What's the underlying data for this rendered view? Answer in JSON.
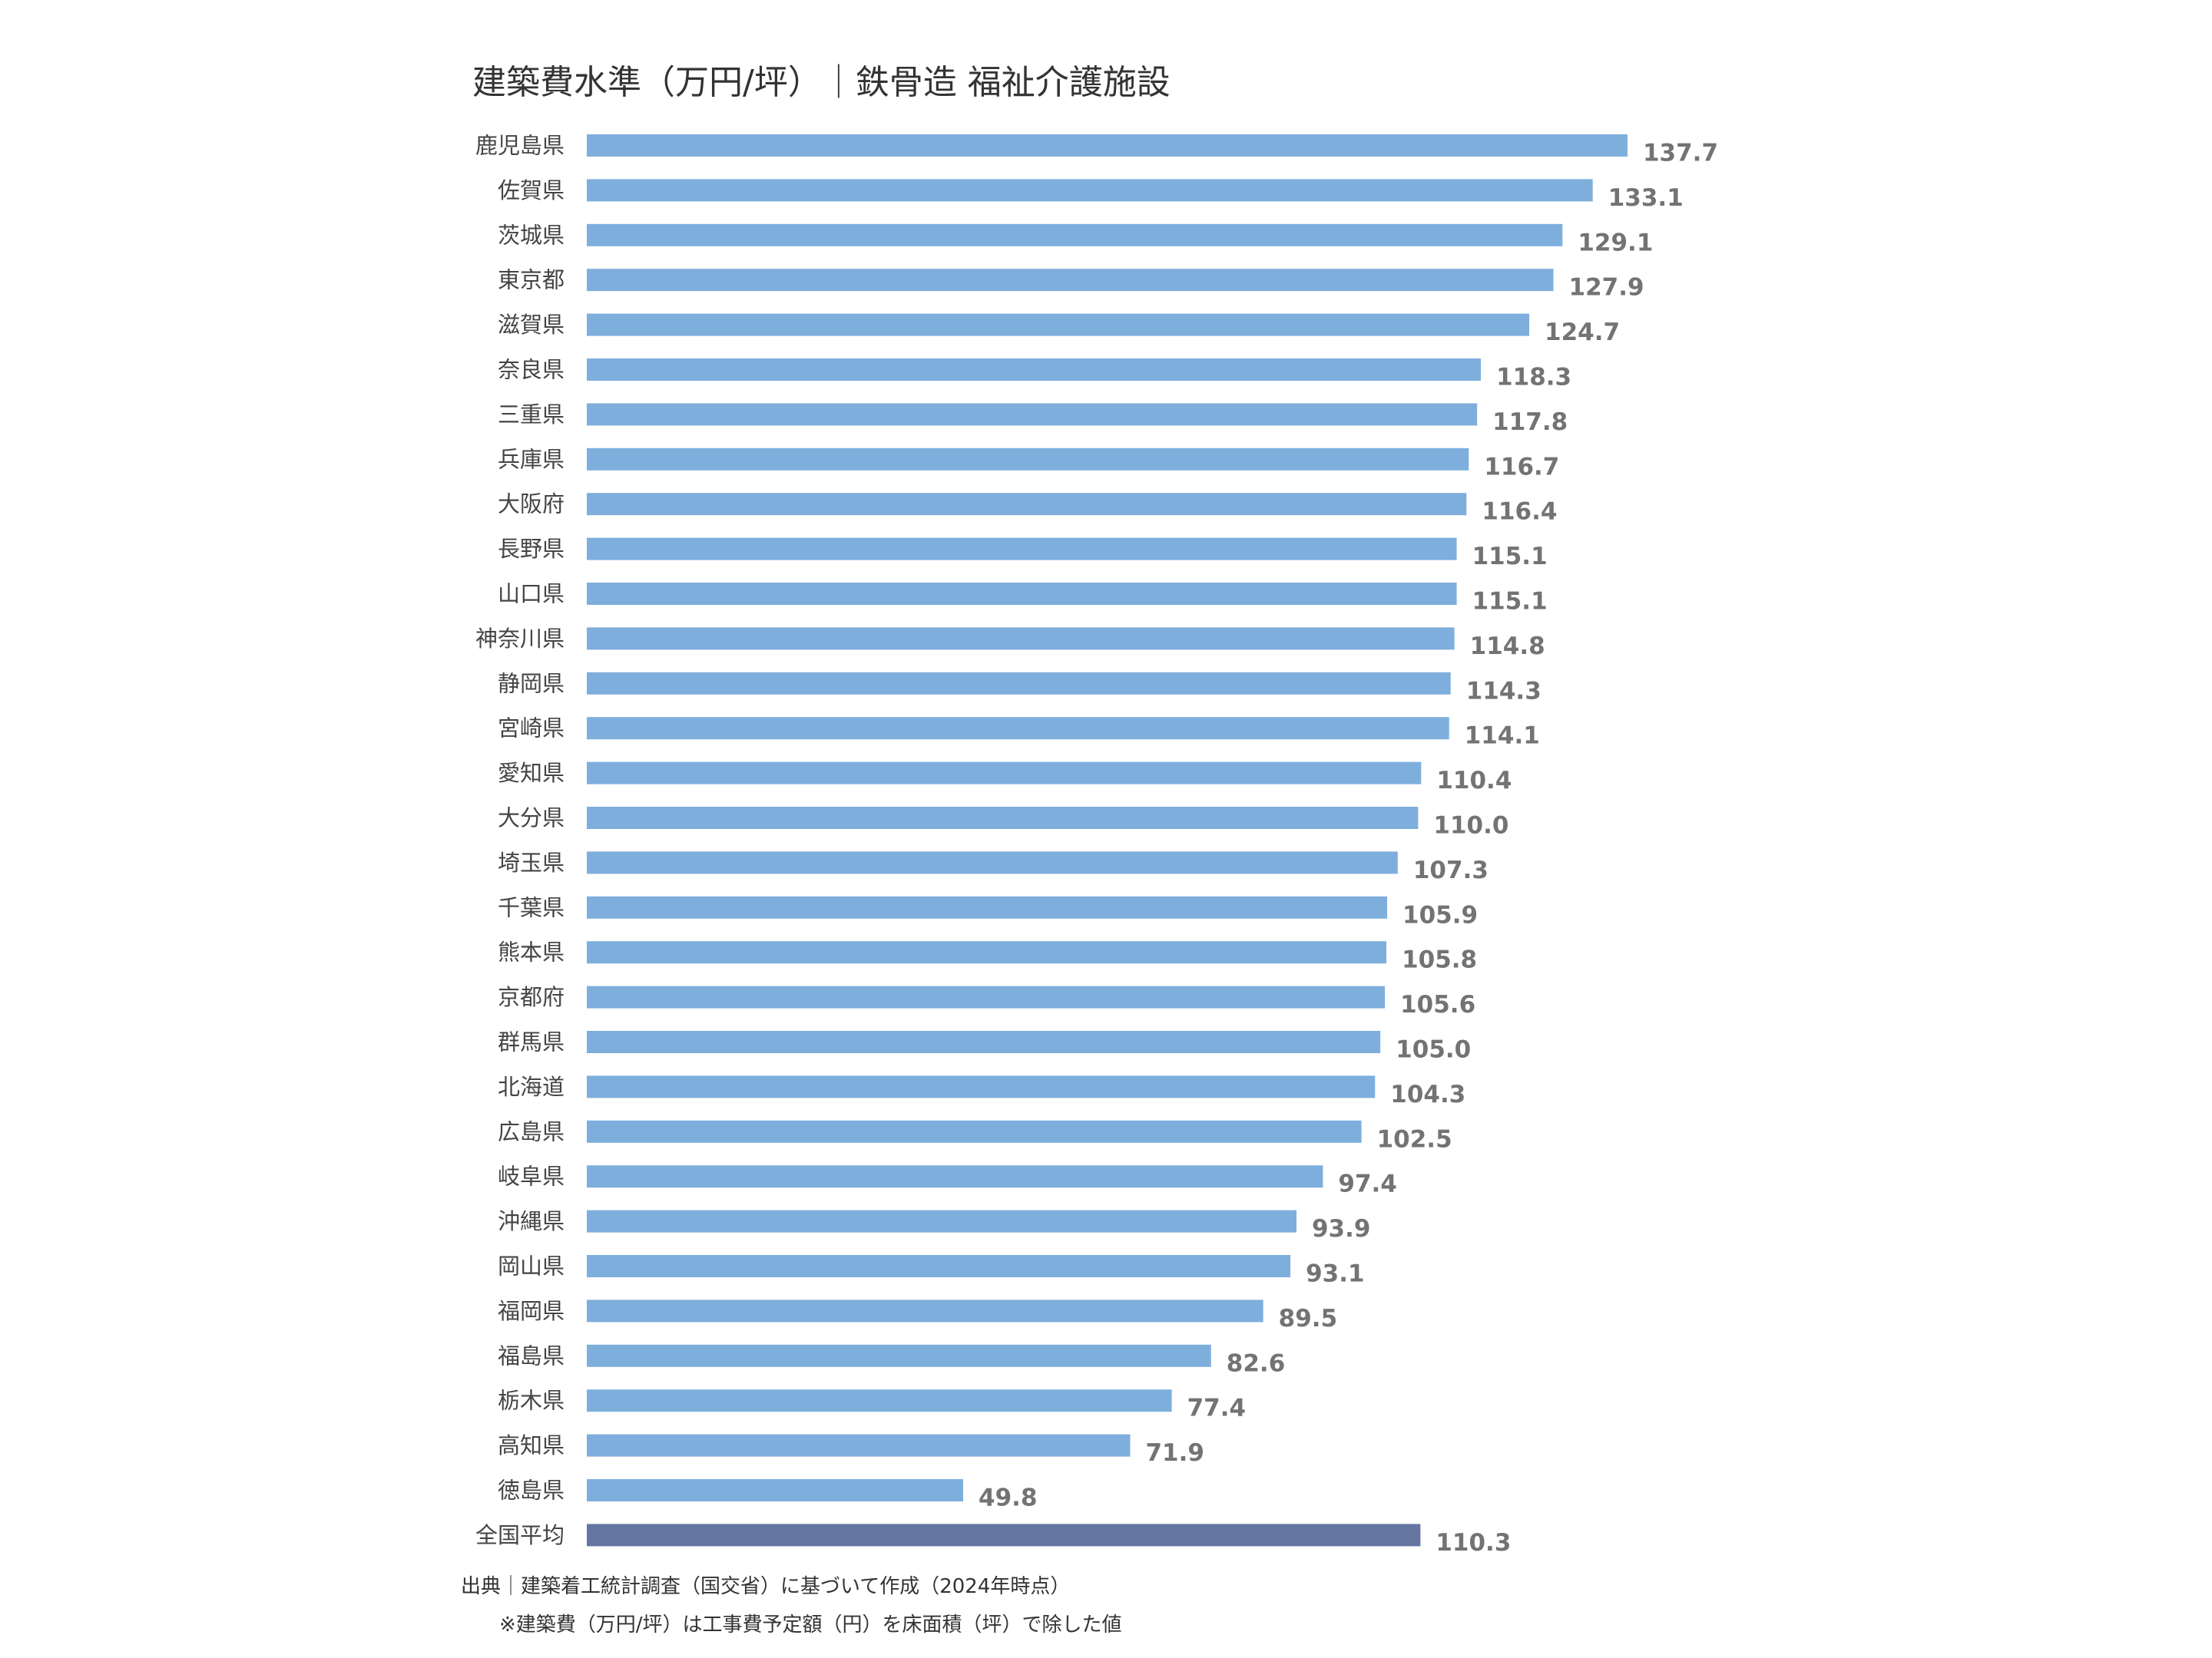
{
  "colors": {
    "bar": "#7eaedc",
    "average_bar": "#6476a1",
    "value_label": "#737373",
    "category_label": "#444444",
    "title": "#333333"
  },
  "notes": {
    "source": "出典｜建築着工統計調査（国交省）に基づいて作成（2024年時点）",
    "definition": "※建築費（万円/坪）は工事費予定額（円）を床面積（坪）で除した値"
  },
  "chart_data": {
    "type": "bar",
    "orientation": "horizontal",
    "title": "建築費水準（万円/坪）｜鉄骨造 福祉介護施設",
    "xlim": [
      0,
      150
    ],
    "grid": false,
    "legend": "none",
    "categories": [
      "鹿児島県",
      "佐賀県",
      "茨城県",
      "東京都",
      "滋賀県",
      "奈良県",
      "三重県",
      "兵庫県",
      "大阪府",
      "長野県",
      "山口県",
      "神奈川県",
      "静岡県",
      "宮崎県",
      "愛知県",
      "大分県",
      "埼玉県",
      "千葉県",
      "熊本県",
      "京都府",
      "群馬県",
      "北海道",
      "広島県",
      "岐阜県",
      "沖縄県",
      "岡山県",
      "福岡県",
      "福島県",
      "栃木県",
      "高知県",
      "徳島県",
      "全国平均"
    ],
    "values": [
      137.7,
      133.1,
      129.1,
      127.9,
      124.7,
      118.3,
      117.8,
      116.7,
      116.4,
      115.1,
      115.1,
      114.8,
      114.3,
      114.1,
      110.4,
      110.0,
      107.3,
      105.9,
      105.8,
      105.6,
      105.0,
      104.3,
      102.5,
      97.4,
      93.9,
      93.1,
      89.5,
      82.6,
      77.4,
      71.9,
      49.8,
      110.3
    ],
    "value_labels": [
      "137.7",
      "133.1",
      "129.1",
      "127.9",
      "124.7",
      "118.3",
      "117.8",
      "116.7",
      "116.4",
      "115.1",
      "115.1",
      "114.8",
      "114.3",
      "114.1",
      "110.4",
      "110.0",
      "107.3",
      "105.9",
      "105.8",
      "105.6",
      "105.0",
      "104.3",
      "102.5",
      "97.4",
      "93.9",
      "93.1",
      "89.5",
      "82.6",
      "77.4",
      "71.9",
      "49.8",
      "110.3"
    ],
    "highlight_category": "全国平均"
  }
}
